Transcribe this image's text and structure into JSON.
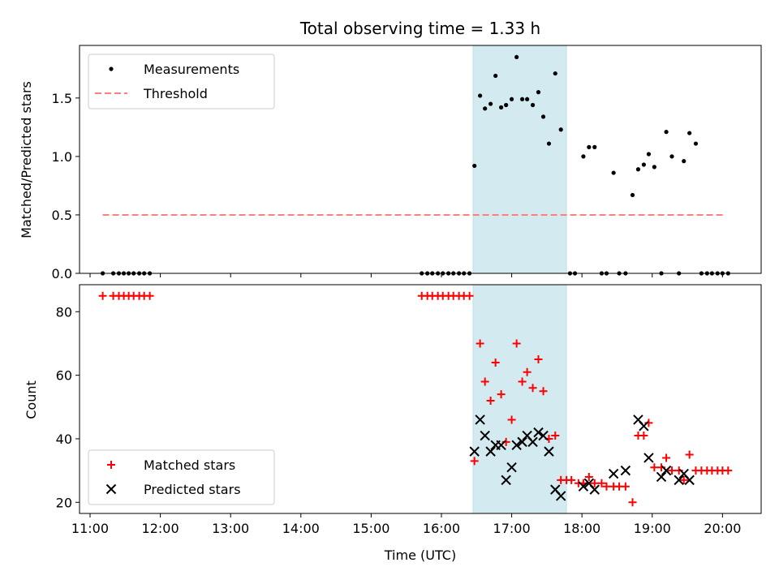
{
  "chart_data": [
    {
      "type": "scatter",
      "title": "Total observing time = 1.33 h",
      "ylabel": "Matched/Predicted stars",
      "xlabel": "",
      "xlim": [
        10.85,
        20.55
      ],
      "ylim": [
        0,
        1.95
      ],
      "yticks": [
        0.0,
        0.5,
        1.0,
        1.5
      ],
      "ytick_labels": [
        "0.0",
        "0.5",
        "1.0",
        "1.5"
      ],
      "highlight_span": [
        16.45,
        17.78
      ],
      "highlight_color": "#d3eaf0",
      "legend": {
        "position": "upper-left",
        "entries": [
          "Measurements",
          "Threshold"
        ]
      },
      "threshold": {
        "name": "Threshold",
        "value": 0.5,
        "x_range": [
          11.18,
          20.05
        ],
        "color": "#ff7f7f",
        "style": "dashed"
      },
      "series": [
        {
          "name": "Measurements",
          "marker": "dot",
          "color": "#000000",
          "points": [
            [
              11.18,
              0
            ],
            [
              11.33,
              0
            ],
            [
              11.41,
              0
            ],
            [
              11.48,
              0
            ],
            [
              11.55,
              0
            ],
            [
              11.62,
              0
            ],
            [
              11.7,
              0
            ],
            [
              11.77,
              0
            ],
            [
              11.85,
              0
            ],
            [
              15.72,
              0
            ],
            [
              15.8,
              0
            ],
            [
              15.87,
              0
            ],
            [
              15.95,
              0
            ],
            [
              16.02,
              0
            ],
            [
              16.1,
              0
            ],
            [
              16.17,
              0
            ],
            [
              16.25,
              0
            ],
            [
              16.32,
              0
            ],
            [
              16.4,
              0
            ],
            [
              16.47,
              0.92
            ],
            [
              16.55,
              1.52
            ],
            [
              16.62,
              1.41
            ],
            [
              16.7,
              1.45
            ],
            [
              16.77,
              1.69
            ],
            [
              16.85,
              1.42
            ],
            [
              16.92,
              1.44
            ],
            [
              17.0,
              1.49
            ],
            [
              17.07,
              1.85
            ],
            [
              17.15,
              1.49
            ],
            [
              17.22,
              1.49
            ],
            [
              17.3,
              1.44
            ],
            [
              17.38,
              1.55
            ],
            [
              17.45,
              1.34
            ],
            [
              17.53,
              1.11
            ],
            [
              17.62,
              1.71
            ],
            [
              17.7,
              1.23
            ],
            [
              17.83,
              0
            ],
            [
              17.9,
              0
            ],
            [
              18.02,
              1.0
            ],
            [
              18.1,
              1.08
            ],
            [
              18.18,
              1.08
            ],
            [
              18.28,
              0
            ],
            [
              18.35,
              0
            ],
            [
              18.45,
              0.86
            ],
            [
              18.53,
              0
            ],
            [
              18.62,
              0
            ],
            [
              18.72,
              0.67
            ],
            [
              18.8,
              0.89
            ],
            [
              18.88,
              0.93
            ],
            [
              18.95,
              1.02
            ],
            [
              19.03,
              0.91
            ],
            [
              19.13,
              0
            ],
            [
              19.2,
              1.21
            ],
            [
              19.28,
              1.0
            ],
            [
              19.38,
              0
            ],
            [
              19.45,
              0.96
            ],
            [
              19.53,
              1.2
            ],
            [
              19.62,
              1.11
            ],
            [
              19.7,
              0
            ],
            [
              19.78,
              0
            ],
            [
              19.85,
              0
            ],
            [
              19.93,
              0
            ],
            [
              20.0,
              0
            ],
            [
              20.08,
              0
            ]
          ]
        }
      ]
    },
    {
      "type": "scatter",
      "title": "",
      "ylabel": "Count",
      "xlabel": "Time (UTC)",
      "xlim": [
        10.85,
        20.55
      ],
      "ylim": [
        16.5,
        88.5
      ],
      "yticks": [
        20,
        40,
        60,
        80
      ],
      "ytick_labels": [
        "20",
        "40",
        "60",
        "80"
      ],
      "xticks": [
        11,
        12,
        13,
        14,
        15,
        16,
        17,
        18,
        19,
        20
      ],
      "xtick_labels": [
        "11:00",
        "12:00",
        "13:00",
        "14:00",
        "15:00",
        "16:00",
        "17:00",
        "18:00",
        "19:00",
        "20:00"
      ],
      "highlight_span": [
        16.45,
        17.78
      ],
      "highlight_color": "#d3eaf0",
      "legend": {
        "position": "lower-left",
        "entries": [
          "Matched stars",
          "Predicted stars"
        ]
      },
      "series": [
        {
          "name": "Matched stars",
          "marker": "plus",
          "color": "#ff0000",
          "points": [
            [
              11.18,
              85
            ],
            [
              11.33,
              85
            ],
            [
              11.41,
              85
            ],
            [
              11.48,
              85
            ],
            [
              11.55,
              85
            ],
            [
              11.62,
              85
            ],
            [
              11.7,
              85
            ],
            [
              11.77,
              85
            ],
            [
              11.85,
              85
            ],
            [
              15.72,
              85
            ],
            [
              15.8,
              85
            ],
            [
              15.87,
              85
            ],
            [
              15.95,
              85
            ],
            [
              16.02,
              85
            ],
            [
              16.1,
              85
            ],
            [
              16.17,
              85
            ],
            [
              16.25,
              85
            ],
            [
              16.32,
              85
            ],
            [
              16.4,
              85
            ],
            [
              16.47,
              33
            ],
            [
              16.55,
              70
            ],
            [
              16.62,
              58
            ],
            [
              16.7,
              52
            ],
            [
              16.77,
              64
            ],
            [
              16.85,
              54
            ],
            [
              16.92,
              39
            ],
            [
              17.0,
              46
            ],
            [
              17.07,
              70
            ],
            [
              17.15,
              58
            ],
            [
              17.22,
              61
            ],
            [
              17.3,
              56
            ],
            [
              17.38,
              65
            ],
            [
              17.45,
              55
            ],
            [
              17.53,
              40
            ],
            [
              17.62,
              41
            ],
            [
              17.7,
              27
            ],
            [
              17.78,
              27
            ],
            [
              17.85,
              27
            ],
            [
              17.95,
              26
            ],
            [
              18.02,
              26
            ],
            [
              18.1,
              28
            ],
            [
              18.18,
              26
            ],
            [
              18.28,
              26
            ],
            [
              18.35,
              25
            ],
            [
              18.45,
              25
            ],
            [
              18.53,
              25
            ],
            [
              18.62,
              25
            ],
            [
              18.72,
              20
            ],
            [
              18.8,
              41
            ],
            [
              18.88,
              41
            ],
            [
              18.95,
              45
            ],
            [
              19.03,
              31
            ],
            [
              19.13,
              31
            ],
            [
              19.2,
              34
            ],
            [
              19.28,
              30
            ],
            [
              19.38,
              30
            ],
            [
              19.45,
              27
            ],
            [
              19.53,
              35
            ],
            [
              19.62,
              30
            ],
            [
              19.7,
              30
            ],
            [
              19.78,
              30
            ],
            [
              19.85,
              30
            ],
            [
              19.93,
              30
            ],
            [
              20.0,
              30
            ],
            [
              20.08,
              30
            ]
          ]
        },
        {
          "name": "Predicted stars",
          "marker": "x",
          "color": "#000000",
          "points": [
            [
              16.47,
              36
            ],
            [
              16.55,
              46
            ],
            [
              16.62,
              41
            ],
            [
              16.7,
              36
            ],
            [
              16.77,
              38
            ],
            [
              16.85,
              38
            ],
            [
              16.92,
              27
            ],
            [
              17.0,
              31
            ],
            [
              17.07,
              38
            ],
            [
              17.15,
              39
            ],
            [
              17.22,
              41
            ],
            [
              17.3,
              39
            ],
            [
              17.38,
              42
            ],
            [
              17.45,
              41
            ],
            [
              17.53,
              36
            ],
            [
              17.62,
              24
            ],
            [
              17.7,
              22
            ],
            [
              18.02,
              25
            ],
            [
              18.1,
              26
            ],
            [
              18.18,
              24
            ],
            [
              18.45,
              29
            ],
            [
              18.62,
              30
            ],
            [
              18.8,
              46
            ],
            [
              18.88,
              44
            ],
            [
              18.95,
              34
            ],
            [
              19.13,
              28
            ],
            [
              19.2,
              30
            ],
            [
              19.38,
              27
            ],
            [
              19.45,
              29
            ],
            [
              19.53,
              27
            ]
          ]
        }
      ]
    }
  ]
}
